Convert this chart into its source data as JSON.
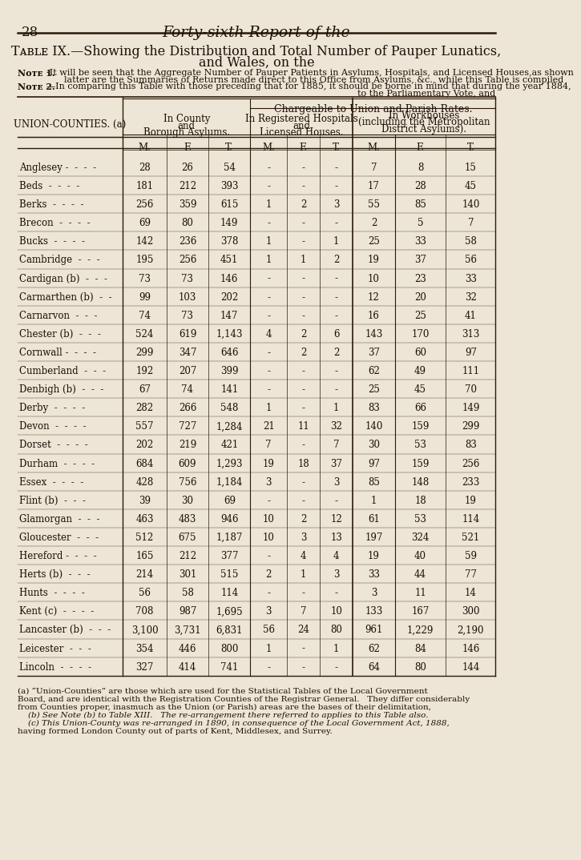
{
  "page_number": "28",
  "page_title": "Forty-sixth Report of the",
  "table_title_line1": "Tᴀʙʟᴇ IX.—Showing the Distribution and Total Number of Pauper Lunatics,",
  "table_title_line2": "and Wales, on the",
  "note1_label": "Nᴏᴛᴇ 1.",
  "note1_text": "-It will be seen that the Aggregate Number of Pauper Patients in Asylums, Hospitals, and Licensed Houses,as shown",
  "note1b": "          latter are the Summaries of Returns made direct to this Office from Asylums, &c., while this Table is compiled",
  "note2_label": "Nᴏᴛᴇ 2.",
  "note2_text": "—In comparing this Table with those preceding that for 1885, it should be borne in mind that during the year 1884,",
  "note2b": "                                                                                                          to the Parliamentary Vote, and",
  "chargeable_header": "Chargeable to Union and Parish Rates.",
  "union_counties_header": "UNION-COUNTIES. (a)",
  "rows": [
    [
      "Anglesey -  -  -  -",
      "28",
      "26",
      "54",
      "-",
      "-",
      "-",
      "7",
      "8",
      "15"
    ],
    [
      "Beds  -  -  -  -",
      "181",
      "212",
      "393",
      "-",
      "-",
      "-",
      "17",
      "28",
      "45"
    ],
    [
      "Berks  -  -  -  -",
      "256",
      "359",
      "615",
      "1",
      "2",
      "3",
      "55",
      "85",
      "140"
    ],
    [
      "Brecon  -  -  -  -",
      "69",
      "80",
      "149",
      "-",
      "-",
      "-",
      "2",
      "5",
      "7"
    ],
    [
      "Bucks  -  -  -  -",
      "142",
      "236",
      "378",
      "1",
      "-",
      "1",
      "25",
      "33",
      "58"
    ],
    [
      "Cambridge  -  -  -",
      "195",
      "256",
      "451",
      "1",
      "1",
      "2",
      "19",
      "37",
      "56"
    ],
    [
      "Cardigan (b)  -  -  -",
      "73",
      "73",
      "146",
      "-",
      "-",
      "-",
      "10",
      "23",
      "33"
    ],
    [
      "Carmarthen (b)  -  -",
      "99",
      "103",
      "202",
      "-",
      "-",
      "-",
      "12",
      "20",
      "32"
    ],
    [
      "Carnarvon  -  -  -",
      "74",
      "73",
      "147",
      "-",
      "-",
      "-",
      "16",
      "25",
      "41"
    ],
    [
      "Chester (b)  -  -  -",
      "524",
      "619",
      "1,143",
      "4",
      "2",
      "6",
      "143",
      "170",
      "313"
    ],
    [
      "Cornwall -  -  -  -",
      "299",
      "347",
      "646",
      "-",
      "2",
      "2",
      "37",
      "60",
      "97"
    ],
    [
      "Cumberland  -  -  -",
      "192",
      "207",
      "399",
      "-",
      "-",
      "-",
      "62",
      "49",
      "111"
    ],
    [
      "Denbigh (b)  -  -  -",
      "67",
      "74",
      "141",
      "-",
      "-",
      "-",
      "25",
      "45",
      "70"
    ],
    [
      "Derby  -  -  -  -",
      "282",
      "266",
      "548",
      "1",
      "-",
      "1",
      "83",
      "66",
      "149"
    ],
    [
      "Devon  -  -  -  -",
      "557",
      "727",
      "1,284",
      "21",
      "11",
      "32",
      "140",
      "159",
      "299"
    ],
    [
      "Dorset  -  -  -  -",
      "202",
      "219",
      "421",
      "7",
      "-",
      "7",
      "30",
      "53",
      "83"
    ],
    [
      "Durham  -  -  -  -",
      "684",
      "609",
      "1,293",
      "19",
      "18",
      "37",
      "97",
      "159",
      "256"
    ],
    [
      "Essex  -  -  -  -",
      "428",
      "756",
      "1,184",
      "3",
      "-",
      "3",
      "85",
      "148",
      "233"
    ],
    [
      "Flint (b)  -  -  -",
      "39",
      "30",
      "69",
      "-",
      "-",
      "-",
      "1",
      "18",
      "19"
    ],
    [
      "Glamorgan  -  -  -",
      "463",
      "483",
      "946",
      "10",
      "2",
      "12",
      "61",
      "53",
      "114"
    ],
    [
      "Gloucester  -  -  -",
      "512",
      "675",
      "1,187",
      "10",
      "3",
      "13",
      "197",
      "324",
      "521"
    ],
    [
      "Hereford -  -  -  -",
      "165",
      "212",
      "377",
      "-",
      "4",
      "4",
      "19",
      "40",
      "59"
    ],
    [
      "Herts (b)  -  -  -",
      "214",
      "301",
      "515",
      "2",
      "1",
      "3",
      "33",
      "44",
      "77"
    ],
    [
      "Hunts  -  -  -  -",
      "56",
      "58",
      "114",
      "-",
      "-",
      "-",
      "3",
      "11",
      "14"
    ],
    [
      "Kent (c)  -  -  -  -",
      "708",
      "987",
      "1,695",
      "3",
      "7",
      "10",
      "133",
      "167",
      "300"
    ],
    [
      "Lancaster (b)  -  -  -",
      "3,100",
      "3,731",
      "6,831",
      "56",
      "24",
      "80",
      "961",
      "1,229",
      "2,190"
    ],
    [
      "Leicester  -  -  -",
      "354",
      "446",
      "800",
      "1",
      "-",
      "1",
      "62",
      "84",
      "146"
    ],
    [
      "Lincoln  -  -  -  -",
      "327",
      "414",
      "741",
      "-",
      "-",
      "-",
      "64",
      "80",
      "144"
    ]
  ],
  "footnote_a1": "(a) “Union-Counties” are those which are used for the Statistical Tables of the Local Government",
  "footnote_a2": "Board, and are identical with the Registration Counties of the Registrar General.   They differ considerably",
  "footnote_a3": "from Counties proper, inasmuch as the Union (or Parish) areas are the bases of their delimitation,",
  "footnote_b": "    (b) See Note (b) to Table XIII.   The re-arrangement there referred to applies to this Table also.",
  "footnote_c1": "    (c) This Union-County was re-arranged in 1890, in consequence of the Local Government Act, 1888,",
  "footnote_c2": "having formed London County out of parts of Kent, Middlesex, and Surrey.",
  "bg_color": "#ede5d5",
  "text_color": "#1a1008",
  "line_color": "#2a1a08"
}
